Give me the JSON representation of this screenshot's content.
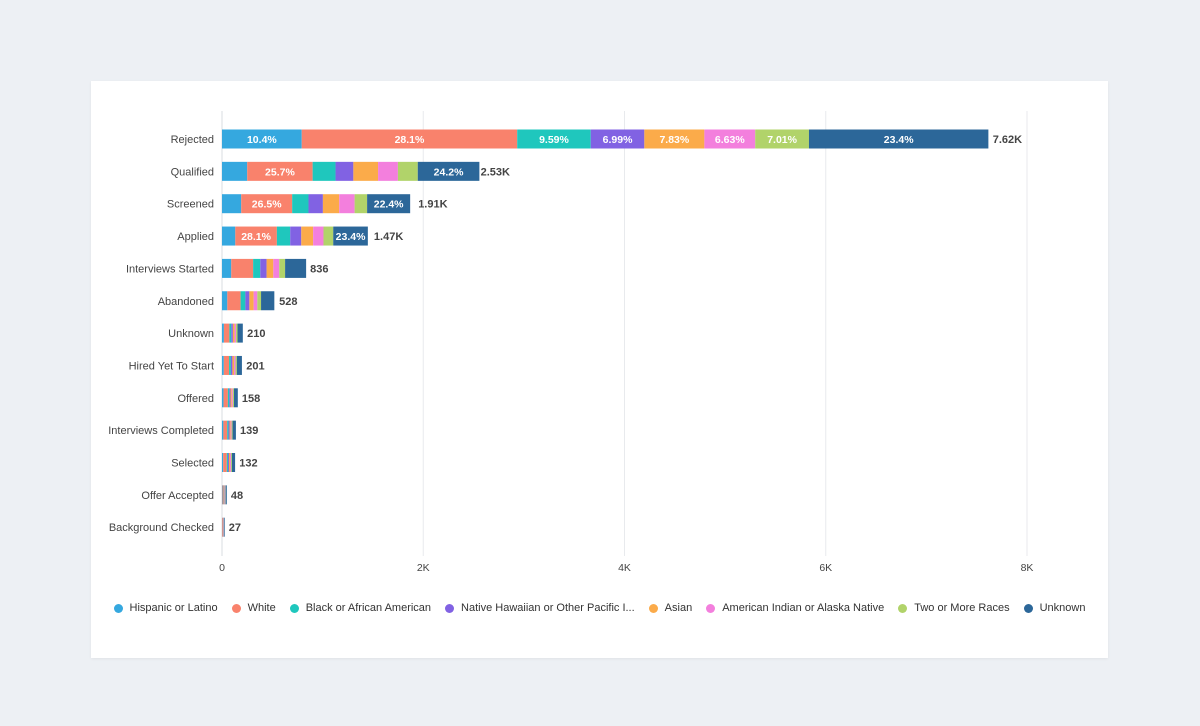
{
  "chart_data": {
    "type": "bar",
    "orientation": "horizontal",
    "stacked": true,
    "xlim": [
      0,
      8000
    ],
    "x_ticks": [
      {
        "value": 0,
        "label": "0"
      },
      {
        "value": 2000,
        "label": "2K"
      },
      {
        "value": 4000,
        "label": "4K"
      },
      {
        "value": 6000,
        "label": "6K"
      },
      {
        "value": 8000,
        "label": "8K"
      }
    ],
    "grid": true,
    "legend_position": "bottom",
    "categories": [
      "Rejected",
      "Qualified",
      "Screened",
      "Applied",
      "Interviews Started",
      "Abandoned",
      "Unknown",
      "Hired Yet To Start",
      "Offered",
      "Interviews Completed",
      "Selected",
      "Offer Accepted",
      "Background Checked"
    ],
    "totals": [
      7620,
      2530,
      1910,
      1470,
      836,
      528,
      210,
      201,
      158,
      139,
      132,
      48,
      27
    ],
    "total_labels": [
      "7.62K",
      "2.53K",
      "1.91K",
      "1.47K",
      "836",
      "528",
      "210",
      "201",
      "158",
      "139",
      "132",
      "48",
      "27"
    ],
    "series": [
      {
        "name": "Hispanic or Latino",
        "color": "#35a8df",
        "percents": [
          10.4,
          9.9,
          10.0,
          9.0,
          11.0,
          10.0,
          9.0,
          9.0,
          10.0,
          10.0,
          9.0,
          10.0,
          10.0
        ],
        "labels": [
          "10.4%",
          "",
          "",
          "",
          "",
          "",
          "",
          "",
          "",
          "",
          "",
          "",
          ""
        ]
      },
      {
        "name": "White",
        "color": "#f9826c",
        "percents": [
          28.1,
          25.7,
          26.5,
          28.1,
          26.0,
          25.0,
          26.0,
          26.0,
          27.0,
          27.0,
          27.0,
          26.0,
          26.0
        ],
        "labels": [
          "28.1%",
          "25.7%",
          "26.5%",
          "28.1%",
          "",
          "",
          "",
          "",
          "",
          "",
          "",
          "",
          ""
        ]
      },
      {
        "name": "Black or African American",
        "color": "#1fc7bd",
        "percents": [
          9.59,
          9.0,
          8.5,
          9.0,
          8.5,
          9.0,
          9.0,
          9.0,
          9.0,
          9.0,
          9.0,
          9.0,
          9.0
        ],
        "labels": [
          "9.59%",
          "",
          "",
          "",
          "",
          "",
          "",
          "",
          "",
          "",
          "",
          "",
          ""
        ]
      },
      {
        "name": "Native Hawaiian or Other Pacific I...",
        "color": "#8162e3",
        "percents": [
          6.99,
          7.0,
          7.5,
          7.5,
          7.5,
          7.5,
          7.5,
          7.5,
          7.5,
          7.5,
          7.5,
          7.5,
          7.5
        ],
        "labels": [
          "6.99%",
          "",
          "",
          "",
          "",
          "",
          "",
          "",
          "",
          "",
          "",
          "",
          ""
        ]
      },
      {
        "name": "Asian",
        "color": "#fbab4a",
        "percents": [
          7.83,
          9.7,
          8.5,
          8.0,
          8.0,
          8.0,
          8.0,
          8.0,
          8.0,
          8.0,
          8.0,
          8.0,
          8.0
        ],
        "labels": [
          "7.83%",
          "",
          "",
          "",
          "",
          "",
          "",
          "",
          "",
          "",
          "",
          "",
          ""
        ]
      },
      {
        "name": "American Indian or Alaska Native",
        "color": "#f37fdd",
        "percents": [
          6.63,
          7.8,
          8.0,
          7.0,
          7.0,
          7.0,
          7.0,
          7.0,
          7.0,
          7.0,
          7.0,
          7.0,
          7.0
        ],
        "labels": [
          "6.63%",
          "",
          "",
          "",
          "",
          "",
          "",
          "",
          "",
          "",
          "",
          "",
          ""
        ]
      },
      {
        "name": "Two or More Races",
        "color": "#b1d36a",
        "percents": [
          7.01,
          7.8,
          6.5,
          6.6,
          7.0,
          7.0,
          7.0,
          7.0,
          7.0,
          7.0,
          7.0,
          7.0,
          7.0
        ],
        "labels": [
          "7.01%",
          "",
          "",
          "",
          "",
          "",
          "",
          "",
          "",
          "",
          "",
          "",
          ""
        ]
      },
      {
        "name": "Unknown",
        "color": "#2c6799",
        "percents": [
          23.4,
          24.2,
          22.4,
          23.4,
          25.0,
          25.0,
          25.0,
          25.0,
          24.0,
          24.0,
          24.0,
          25.0,
          25.0
        ],
        "labels": [
          "23.4%",
          "24.2%",
          "22.4%",
          "23.4%",
          "",
          "",
          "",
          "",
          "",
          "",
          "",
          "",
          ""
        ]
      }
    ]
  }
}
